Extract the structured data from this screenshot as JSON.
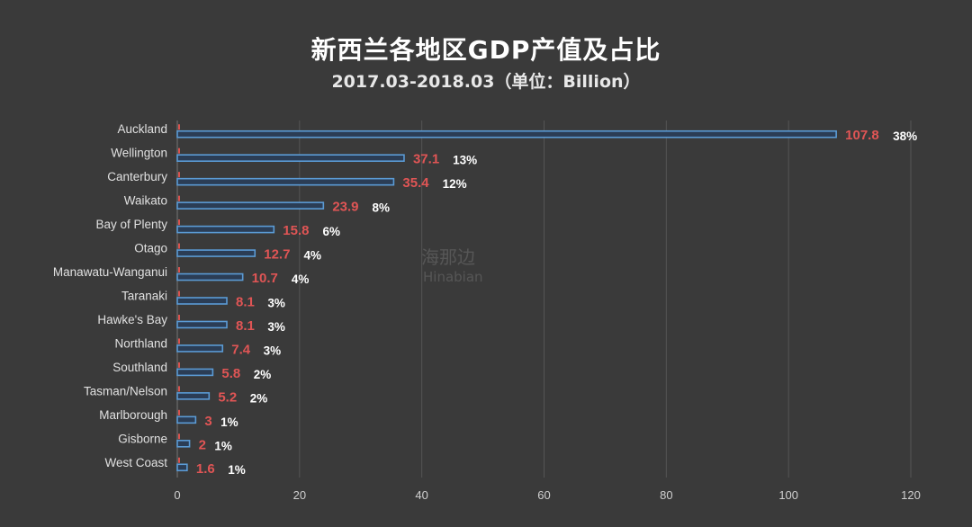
{
  "chart_data": {
    "type": "bar",
    "orientation": "horizontal",
    "title": "新西兰各地区GDP产值及占比",
    "subtitle": "2017.03-2018.03（单位：Billion）",
    "categories": [
      "Auckland",
      "Wellington",
      "Canterbury",
      "Waikato",
      "Bay of Plenty",
      "Otago",
      "Manawatu-Wanganui",
      "Taranaki",
      "Hawke's Bay",
      "Northland",
      "Southland",
      "Tasman/Nelson",
      "Marlborough",
      "Gisborne",
      "West Coast"
    ],
    "values": [
      107.8,
      37.1,
      35.4,
      23.9,
      15.8,
      12.7,
      10.7,
      8.1,
      8.1,
      7.4,
      5.8,
      5.2,
      3,
      2,
      1.6
    ],
    "value_labels": [
      "107.8",
      "37.1",
      "35.4",
      "23.9",
      "15.8",
      "12.7",
      "10.7",
      "8.1",
      "8.1",
      "7.4",
      "5.8",
      "5.2",
      "3",
      "2",
      "1.6"
    ],
    "share_labels": [
      "38%",
      "13%",
      "12%",
      "8%",
      "6%",
      "4%",
      "4%",
      "3%",
      "3%",
      "3%",
      "2%",
      "2%",
      "1%",
      "1%",
      "1%"
    ],
    "xlim": [
      0,
      120
    ],
    "xticks": [
      "0",
      "20",
      "40",
      "60",
      "80",
      "100",
      "120"
    ],
    "grid": true,
    "colors": {
      "background": "#3a3a3a",
      "bar_fill": "#2b3d55",
      "bar_stroke": "#5b9bd5",
      "value_label": "#e05555",
      "share_label": "#ffffff",
      "category_label": "#e0e0e0",
      "grid": "#555555"
    }
  },
  "watermark": {
    "text_cn": "海那边",
    "text_en": "Hinabian"
  }
}
